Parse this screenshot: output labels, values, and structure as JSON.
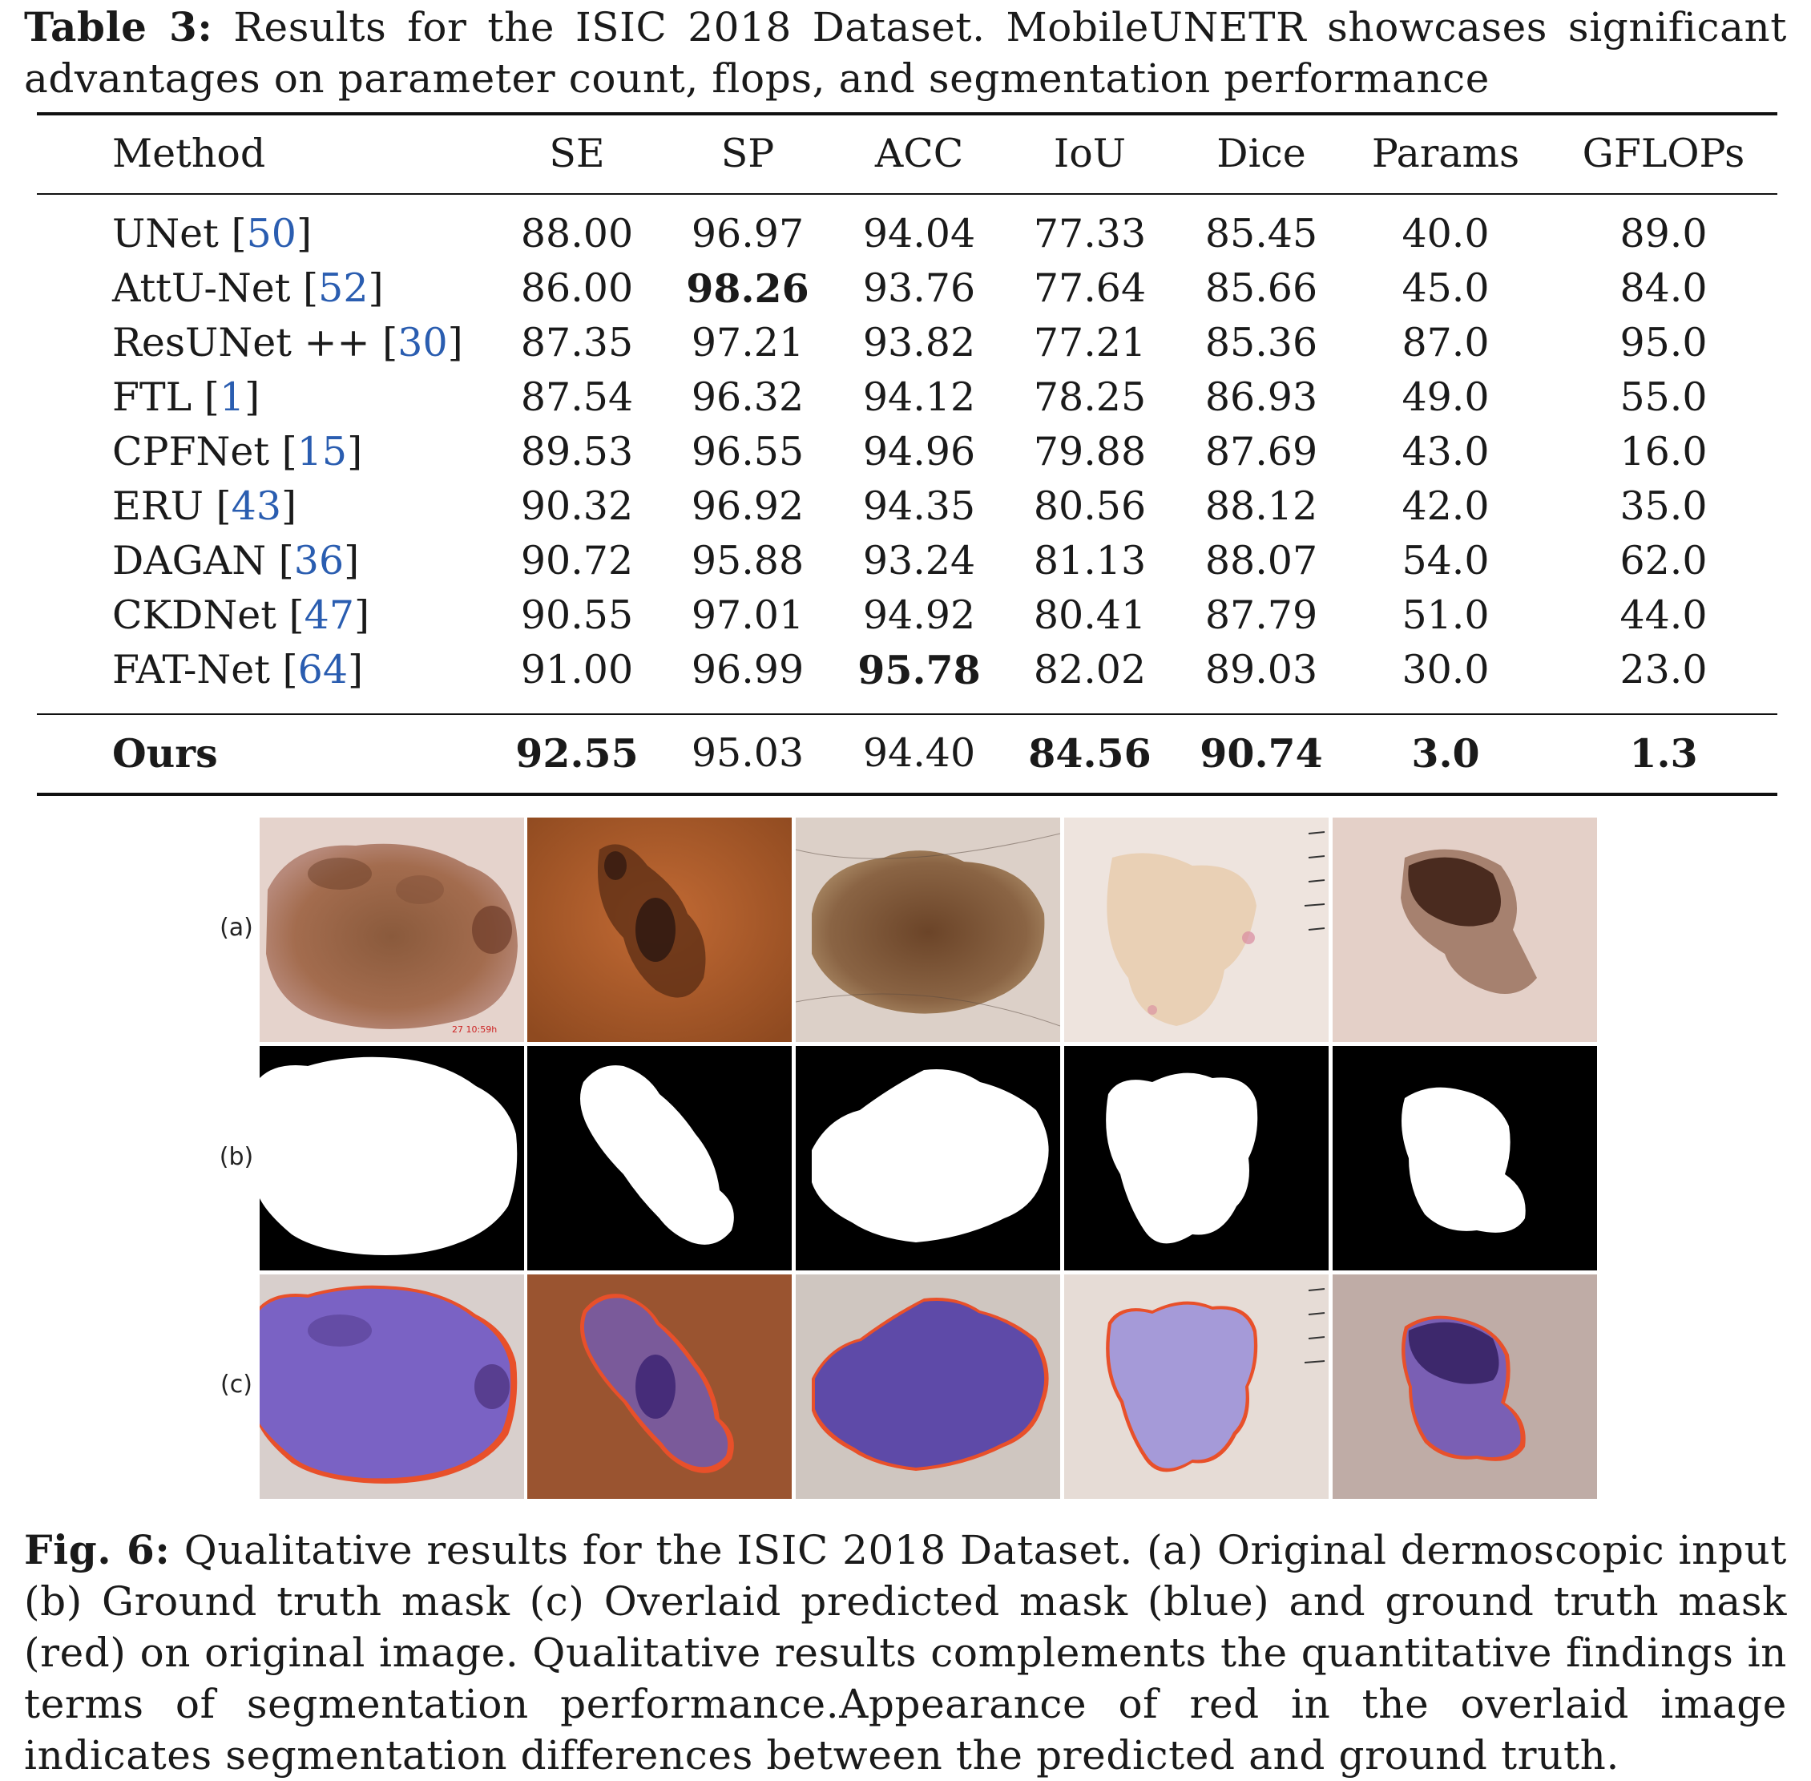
{
  "table": {
    "label": "Table 3:",
    "caption": "Results for the ISIC 2018 Dataset. MobileUNETR showcases significant advantages on parameter count, flops, and segmentation performance",
    "columns": [
      "Method",
      "SE",
      "SP",
      "ACC",
      "IoU",
      "Dice",
      "Params",
      "GFLOPs"
    ],
    "rows": [
      {
        "method": "UNet",
        "ref": "50",
        "values": [
          "88.00",
          "96.97",
          "94.04",
          "77.33",
          "85.45",
          "40.0",
          "89.0"
        ],
        "bold": []
      },
      {
        "method": "AttU-Net",
        "ref": "52",
        "values": [
          "86.00",
          "98.26",
          "93.76",
          "77.64",
          "85.66",
          "45.0",
          "84.0"
        ],
        "bold": [
          1
        ]
      },
      {
        "method": "ResUNet ++",
        "ref": "30",
        "values": [
          "87.35",
          "97.21",
          "93.82",
          "77.21",
          "85.36",
          "87.0",
          "95.0"
        ],
        "bold": []
      },
      {
        "method": "FTL",
        "ref": "1",
        "values": [
          "87.54",
          "96.32",
          "94.12",
          "78.25",
          "86.93",
          "49.0",
          "55.0"
        ],
        "bold": []
      },
      {
        "method": "CPFNet",
        "ref": "15",
        "values": [
          "89.53",
          "96.55",
          "94.96",
          "79.88",
          "87.69",
          "43.0",
          "16.0"
        ],
        "bold": []
      },
      {
        "method": "ERU",
        "ref": "43",
        "values": [
          "90.32",
          "96.92",
          "94.35",
          "80.56",
          "88.12",
          "42.0",
          "35.0"
        ],
        "bold": []
      },
      {
        "method": "DAGAN",
        "ref": "36",
        "values": [
          "90.72",
          "95.88",
          "93.24",
          "81.13",
          "88.07",
          "54.0",
          "62.0"
        ],
        "bold": []
      },
      {
        "method": "CKDNet",
        "ref": "47",
        "values": [
          "90.55",
          "97.01",
          "94.92",
          "80.41",
          "87.79",
          "51.0",
          "44.0"
        ],
        "bold": []
      },
      {
        "method": "FAT-Net",
        "ref": "64",
        "values": [
          "91.00",
          "96.99",
          "95.78",
          "82.02",
          "89.03",
          "30.0",
          "23.0"
        ],
        "bold": [
          2
        ]
      }
    ],
    "ours": {
      "method": "Ours",
      "values": [
        "92.55",
        "95.03",
        "94.40",
        "84.56",
        "90.74",
        "3.0",
        "1.3"
      ],
      "bold": [
        0,
        3,
        4,
        5,
        6
      ]
    }
  },
  "figure": {
    "row_labels": [
      "(a)",
      "(b)",
      "(c)"
    ],
    "label": "Fig. 6:",
    "caption": "Qualitative results for the ISIC 2018 Dataset. (a) Original dermoscopic input (b) Ground truth mask (c) Overlaid predicted mask (blue) and ground truth mask (red) on original image. Qualitative results complements the quantitative findings in terms of segmentation performance.Appearance of red in the overlaid image indicates segmentation differences between the predicted and ground truth.",
    "colors": {
      "mask_bg": "#000000",
      "mask_fg": "#ffffff",
      "prediction_overlay": "#6f55c8",
      "ground_truth_overlay": "#e8502a"
    }
  }
}
